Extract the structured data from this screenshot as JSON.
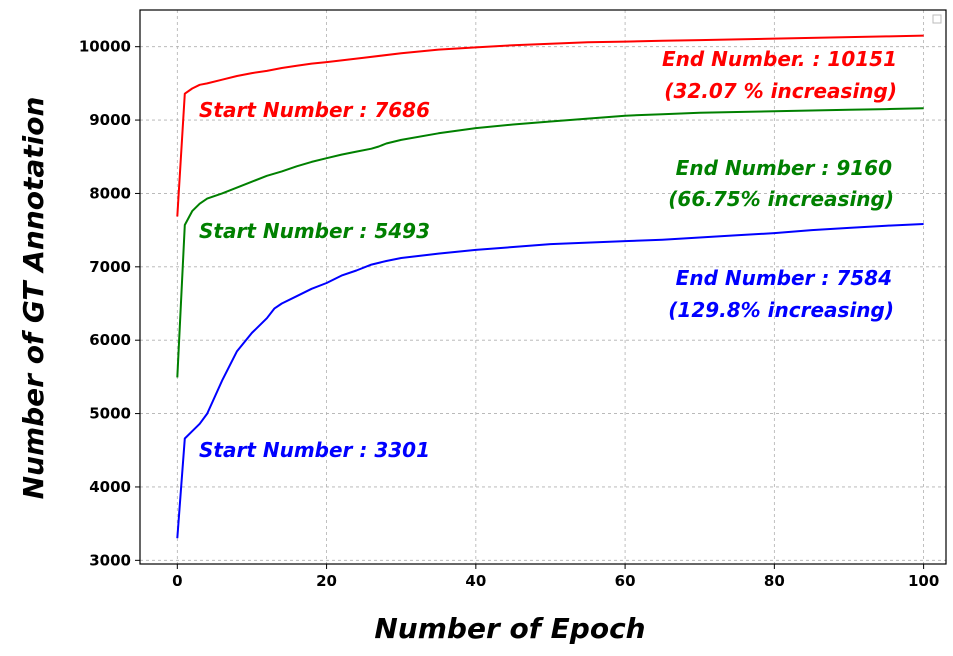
{
  "chart_data": {
    "type": "line",
    "title": "",
    "xlabel": "Number of Epoch",
    "ylabel": "Number of GT Annotation",
    "xlim": [
      -5,
      103
    ],
    "ylim": [
      2950,
      10500
    ],
    "xticks": [
      0,
      20,
      40,
      60,
      80,
      100
    ],
    "yticks": [
      3000,
      4000,
      5000,
      6000,
      7000,
      8000,
      9000,
      10000
    ],
    "grid": true,
    "series": [
      {
        "color": "#ff0000",
        "x": [
          0,
          1,
          2,
          3,
          4,
          6,
          8,
          10,
          12,
          14,
          16,
          18,
          20,
          25,
          30,
          35,
          40,
          45,
          50,
          55,
          60,
          65,
          70,
          75,
          80,
          85,
          90,
          95,
          100
        ],
        "y": [
          7686,
          9360,
          9430,
          9480,
          9500,
          9550,
          9600,
          9640,
          9670,
          9710,
          9740,
          9770,
          9790,
          9850,
          9910,
          9960,
          9990,
          10020,
          10040,
          10060,
          10070,
          10080,
          10090,
          10100,
          10110,
          10120,
          10130,
          10140,
          10151
        ]
      },
      {
        "color": "#008000",
        "x": [
          0,
          1,
          2,
          3,
          4,
          6,
          8,
          10,
          12,
          14,
          16,
          18,
          20,
          22,
          24,
          26,
          27,
          28,
          30,
          35,
          40,
          45,
          50,
          55,
          60,
          65,
          70,
          75,
          80,
          85,
          90,
          95,
          100
        ],
        "y": [
          5493,
          7570,
          7760,
          7860,
          7930,
          8000,
          8080,
          8160,
          8240,
          8300,
          8370,
          8430,
          8480,
          8530,
          8570,
          8610,
          8640,
          8680,
          8730,
          8820,
          8890,
          8940,
          8980,
          9020,
          9060,
          9080,
          9100,
          9110,
          9120,
          9130,
          9140,
          9150,
          9160
        ]
      },
      {
        "color": "#0000ff",
        "x": [
          0,
          1,
          2,
          3,
          4,
          6,
          8,
          10,
          12,
          13,
          14,
          16,
          18,
          20,
          22,
          24,
          26,
          28,
          30,
          35,
          40,
          45,
          50,
          55,
          60,
          65,
          70,
          75,
          80,
          85,
          90,
          95,
          100
        ],
        "y": [
          3301,
          4660,
          4760,
          4860,
          5000,
          5450,
          5850,
          6100,
          6300,
          6430,
          6500,
          6600,
          6700,
          6780,
          6880,
          6950,
          7030,
          7080,
          7120,
          7180,
          7230,
          7270,
          7310,
          7330,
          7350,
          7370,
          7400,
          7430,
          7460,
          7500,
          7530,
          7560,
          7584
        ]
      }
    ],
    "annotations": [
      {
        "text": "Start Number : 7686",
        "color": "#ff0000"
      },
      {
        "text": "End Number. : 10151",
        "color": "#ff0000"
      },
      {
        "text": "(32.07 % increasing)",
        "color": "#ff0000"
      },
      {
        "text": "Start Number : 5493",
        "color": "#008000"
      },
      {
        "text": "End Number : 9160",
        "color": "#008000"
      },
      {
        "text": "(66.75% increasing)",
        "color": "#008000"
      },
      {
        "text": "Start Number : 3301",
        "color": "#0000ff"
      },
      {
        "text": "End Number : 7584",
        "color": "#0000ff"
      },
      {
        "text": "(129.8% increasing)",
        "color": "#0000ff"
      }
    ]
  }
}
